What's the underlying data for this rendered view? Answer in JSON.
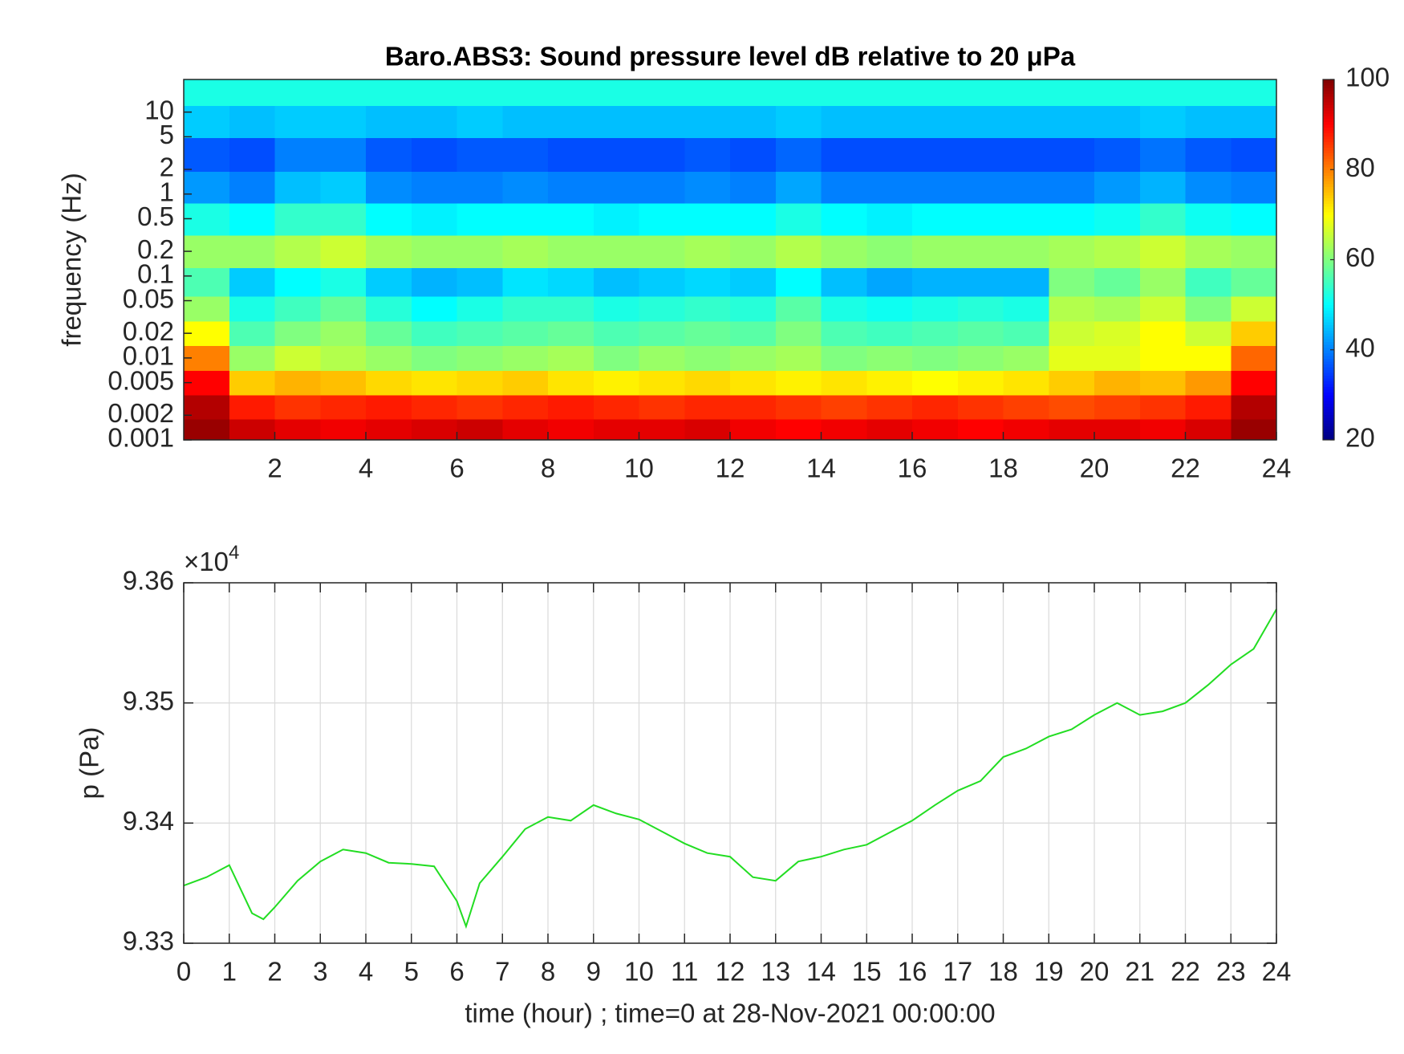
{
  "chart_data": [
    {
      "type": "heatmap",
      "title": "Baro.ABS3: Sound pressure level dB relative to 20 μPa",
      "ylabel": "frequency (Hz)",
      "x": [
        0.5,
        1.5,
        2.5,
        3.5,
        4.5,
        5.5,
        6.5,
        7.5,
        8.5,
        9.5,
        10.5,
        11.5,
        12.5,
        13.5,
        14.5,
        15.5,
        16.5,
        17.5,
        18.5,
        19.5,
        20.5,
        21.5,
        22.5,
        23.5
      ],
      "y": [
        0.0013,
        0.0025,
        0.005,
        0.01,
        0.02,
        0.04,
        0.08,
        0.2,
        0.5,
        1.2,
        3,
        8,
        18
      ],
      "z": [
        [
          98,
          94,
          92,
          91,
          92,
          93,
          94,
          92,
          91,
          92,
          92,
          93,
          91,
          90,
          91,
          92,
          91,
          90,
          91,
          92,
          92,
          91,
          93,
          98
        ],
        [
          96,
          88,
          86,
          87,
          88,
          87,
          86,
          87,
          88,
          87,
          86,
          87,
          87,
          86,
          85,
          86,
          87,
          86,
          85,
          84,
          85,
          86,
          88,
          96
        ],
        [
          90,
          74,
          76,
          75,
          73,
          72,
          73,
          74,
          72,
          71,
          72,
          73,
          72,
          71,
          72,
          71,
          70,
          71,
          72,
          74,
          76,
          75,
          78,
          90
        ],
        [
          80,
          62,
          66,
          64,
          62,
          60,
          61,
          62,
          63,
          60,
          62,
          61,
          62,
          63,
          60,
          61,
          60,
          61,
          62,
          68,
          68,
          70,
          70,
          82
        ],
        [
          70,
          56,
          60,
          62,
          58,
          55,
          56,
          57,
          58,
          56,
          57,
          58,
          57,
          60,
          56,
          55,
          56,
          57,
          56,
          66,
          67,
          70,
          66,
          74
        ],
        [
          62,
          52,
          55,
          58,
          53,
          50,
          52,
          54,
          54,
          52,
          53,
          54,
          53,
          57,
          52,
          51,
          52,
          53,
          52,
          64,
          63,
          66,
          60,
          66
        ],
        [
          56,
          46,
          50,
          52,
          46,
          44,
          45,
          48,
          47,
          45,
          46,
          47,
          46,
          50,
          45,
          43,
          44,
          44,
          44,
          60,
          58,
          62,
          55,
          58
        ],
        [
          62,
          62,
          64,
          66,
          63,
          62,
          62,
          63,
          62,
          62,
          62,
          63,
          62,
          64,
          62,
          61,
          62,
          62,
          62,
          63,
          64,
          66,
          63,
          62
        ],
        [
          52,
          50,
          54,
          54,
          50,
          49,
          50,
          50,
          50,
          49,
          50,
          50,
          50,
          52,
          50,
          49,
          50,
          50,
          50,
          50,
          51,
          54,
          51,
          50
        ],
        [
          42,
          40,
          45,
          46,
          41,
          40,
          40,
          41,
          40,
          40,
          40,
          41,
          40,
          43,
          40,
          40,
          40,
          40,
          40,
          40,
          42,
          44,
          41,
          40
        ],
        [
          37,
          36,
          40,
          40,
          37,
          36,
          37,
          37,
          36,
          36,
          36,
          37,
          36,
          38,
          36,
          36,
          36,
          36,
          36,
          36,
          37,
          39,
          37,
          36
        ],
        [
          46,
          45,
          46,
          46,
          45,
          45,
          46,
          45,
          45,
          45,
          45,
          45,
          45,
          46,
          45,
          45,
          45,
          45,
          45,
          45,
          45,
          46,
          45,
          45
        ],
        [
          52,
          52,
          52,
          52,
          52,
          52,
          52,
          52,
          52,
          52,
          52,
          52,
          52,
          52,
          52,
          52,
          52,
          52,
          52,
          52,
          52,
          52,
          52,
          52
        ]
      ],
      "xlim": [
        0,
        24
      ],
      "xticks": [
        2,
        4,
        6,
        8,
        10,
        12,
        14,
        16,
        18,
        20,
        22,
        24
      ],
      "ylim": [
        0.001,
        25
      ],
      "ylog": true,
      "yticks": [
        0.001,
        0.002,
        0.005,
        0.01,
        0.02,
        0.05,
        0.1,
        0.2,
        0.5,
        1,
        2,
        5,
        10
      ],
      "colormap": "jet",
      "clim": [
        20,
        100
      ],
      "cticks": [
        20,
        40,
        60,
        80,
        100
      ]
    },
    {
      "type": "line",
      "ylabel": "p (Pa)",
      "xlabel": "time (hour) ; time=0 at 28-Nov-2021 00:00:00",
      "y_exponent_base": "×10",
      "y_exponent": "4",
      "x": [
        0,
        0.5,
        1,
        1.5,
        1.75,
        2,
        2.5,
        3,
        3.5,
        4,
        4.5,
        5,
        5.5,
        6,
        6.2,
        6.5,
        7,
        7.5,
        8,
        8.5,
        9,
        9.5,
        10,
        10.5,
        11,
        11.5,
        12,
        12.5,
        13,
        13.5,
        14,
        14.5,
        15,
        15.5,
        16,
        16.5,
        17,
        17.5,
        18,
        18.5,
        19,
        19.5,
        20,
        20.5,
        21,
        21.5,
        22,
        22.5,
        23,
        23.5,
        24
      ],
      "series": [
        {
          "name": "p",
          "color": "#22dd22",
          "values": [
            9.3348,
            9.3355,
            9.3365,
            9.3325,
            9.332,
            9.333,
            9.3352,
            9.3368,
            9.3378,
            9.3375,
            9.3367,
            9.3366,
            9.3364,
            9.3335,
            9.3314,
            9.335,
            9.3372,
            9.3395,
            9.3405,
            9.3402,
            9.3415,
            9.3408,
            9.3403,
            9.3393,
            9.3383,
            9.3375,
            9.3372,
            9.3355,
            9.3352,
            9.3368,
            9.3372,
            9.3378,
            9.3382,
            9.3392,
            9.3402,
            9.3415,
            9.3427,
            9.3435,
            9.3455,
            9.3462,
            9.3472,
            9.3478,
            9.349,
            9.35,
            9.349,
            9.3493,
            9.35,
            9.3515,
            9.3532,
            9.3545,
            9.3578
          ]
        }
      ],
      "xlim": [
        0,
        24
      ],
      "xticks": [
        0,
        1,
        2,
        3,
        4,
        5,
        6,
        7,
        8,
        9,
        10,
        11,
        12,
        13,
        14,
        15,
        16,
        17,
        18,
        19,
        20,
        21,
        22,
        23,
        24
      ],
      "ylim": [
        9.33,
        9.36
      ],
      "yticks": [
        9.33,
        9.34,
        9.35,
        9.36
      ],
      "grid": true
    }
  ]
}
